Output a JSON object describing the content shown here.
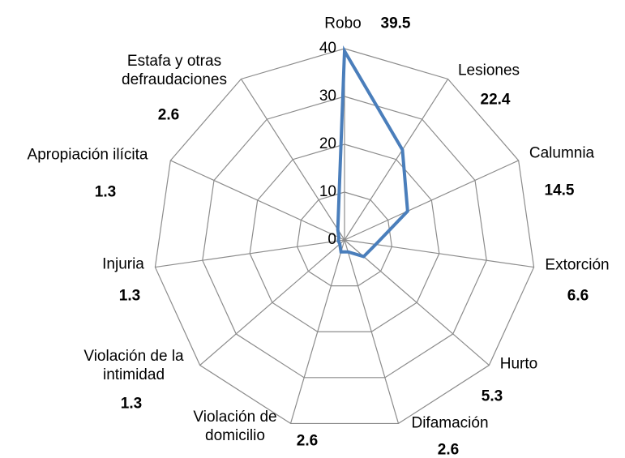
{
  "chart_data": {
    "type": "radar",
    "categories": [
      "Robo",
      "Lesiones",
      "Calumnia",
      "Extorción",
      "Hurto",
      "Difamación",
      "Violación de domicilio",
      "Violación de la intimidad",
      "Injuria",
      "Apropiación ilícita",
      "Estafa y otras defraudaciones"
    ],
    "values": [
      39.5,
      22.4,
      14.5,
      6.6,
      5.3,
      2.6,
      2.6,
      1.3,
      1.3,
      1.3,
      2.6
    ],
    "color": "#4a7ebb",
    "ylim": [
      0,
      40
    ],
    "yticks": [
      0,
      10,
      20,
      30,
      40
    ],
    "grid": true
  }
}
